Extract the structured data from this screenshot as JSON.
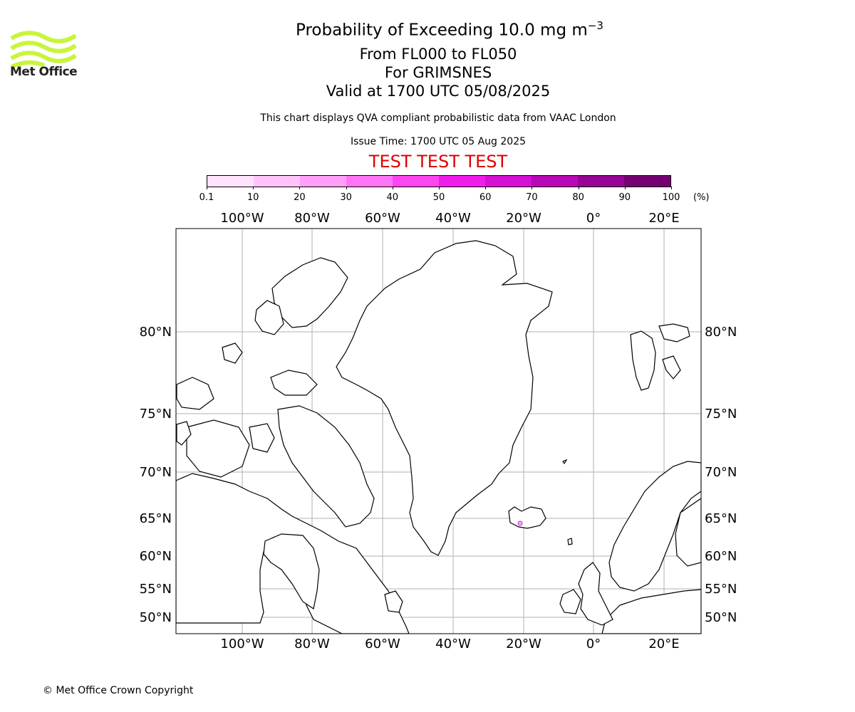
{
  "header": {
    "title_main": "Probability of Exceeding 10.0 mg m",
    "title_sup": "−3",
    "level_range": "From FL000 to FL050",
    "location": "For GRIMSNES",
    "valid": "Valid at 1700 UTC 05/08/2025",
    "disclaimer": "This chart displays QVA compliant probabilistic data from VAAC London",
    "issue_time": "Issue Time: 1700 UTC 05 Aug 2025",
    "test_banner": "TEST TEST TEST"
  },
  "logo": {
    "text": "Met Office",
    "wave_color": "#c8f53c"
  },
  "colorbar": {
    "ticks": [
      "0.1",
      "10",
      "20",
      "30",
      "40",
      "50",
      "60",
      "70",
      "80",
      "90",
      "100"
    ],
    "unit": "(%)",
    "colors": [
      "#ffe3fd",
      "#ffc4fb",
      "#ff9ff8",
      "#ff75f5",
      "#fd45f2",
      "#f01ceb",
      "#d50fd3",
      "#b908b6",
      "#970594",
      "#740371"
    ]
  },
  "map": {
    "lon_labels": [
      "100°W",
      "80°W",
      "60°W",
      "40°W",
      "20°W",
      "0°",
      "20°E"
    ],
    "lat_labels": [
      "80°N",
      "75°N",
      "70°N",
      "65°N",
      "60°N",
      "55°N",
      "50°N"
    ],
    "volcano_marker": "Grimsnes, Iceland",
    "marker_color": "#f4a6ff"
  },
  "footer": {
    "copyright": "© Met Office Crown Copyright"
  }
}
